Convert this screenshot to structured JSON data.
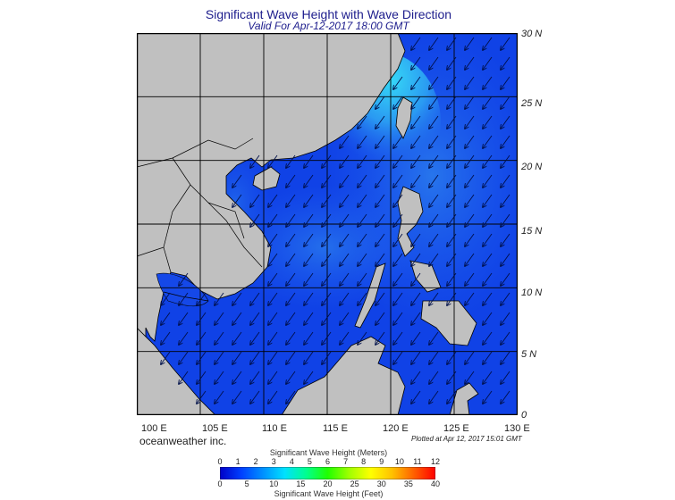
{
  "title": "Significant Wave Height with Wave Direction",
  "subtitle": "Valid For Apr-12-2017 18:00 GMT",
  "credit": "oceanweather inc.",
  "plotted": "Plotted at Apr 12, 2017 15:01 GMT",
  "map": {
    "lat_labels": [
      "30 N",
      "25 N",
      "20 N",
      "15 N",
      "10 N",
      "5 N",
      "0"
    ],
    "lon_labels": [
      "100 E",
      "105 E",
      "110 E",
      "115 E",
      "120 E",
      "125 E",
      "130 E"
    ],
    "lat_range": [
      0,
      30
    ],
    "lon_range": [
      100,
      130
    ],
    "grid_step_deg": 5,
    "wave_direction": "from northeast toward southwest",
    "colors": {
      "land": "#c0c0c0",
      "deep_blue": "#0a37e6",
      "mid_blue": "#1f66ee",
      "light_cyan": "#34c8f4",
      "border": "#000000"
    }
  },
  "colorbar": {
    "title_top": "Significant Wave Height (Meters)",
    "title_bottom": "Significant Wave Height (Feet)",
    "meters_ticks": [
      "0",
      "1",
      "2",
      "3",
      "4",
      "5",
      "6",
      "7",
      "8",
      "9",
      "10",
      "11",
      "12"
    ],
    "feet_ticks": [
      "0",
      "5",
      "10",
      "15",
      "20",
      "25",
      "30",
      "35",
      "40"
    ],
    "meters_range": [
      0,
      12
    ],
    "feet_range": [
      0,
      40
    ],
    "gradient": [
      "#0000c8",
      "#0040ff",
      "#0090ff",
      "#00e0ff",
      "#00ff90",
      "#20ff00",
      "#a0ff00",
      "#ffff00",
      "#ffc000",
      "#ff6000",
      "#ff0000"
    ]
  }
}
